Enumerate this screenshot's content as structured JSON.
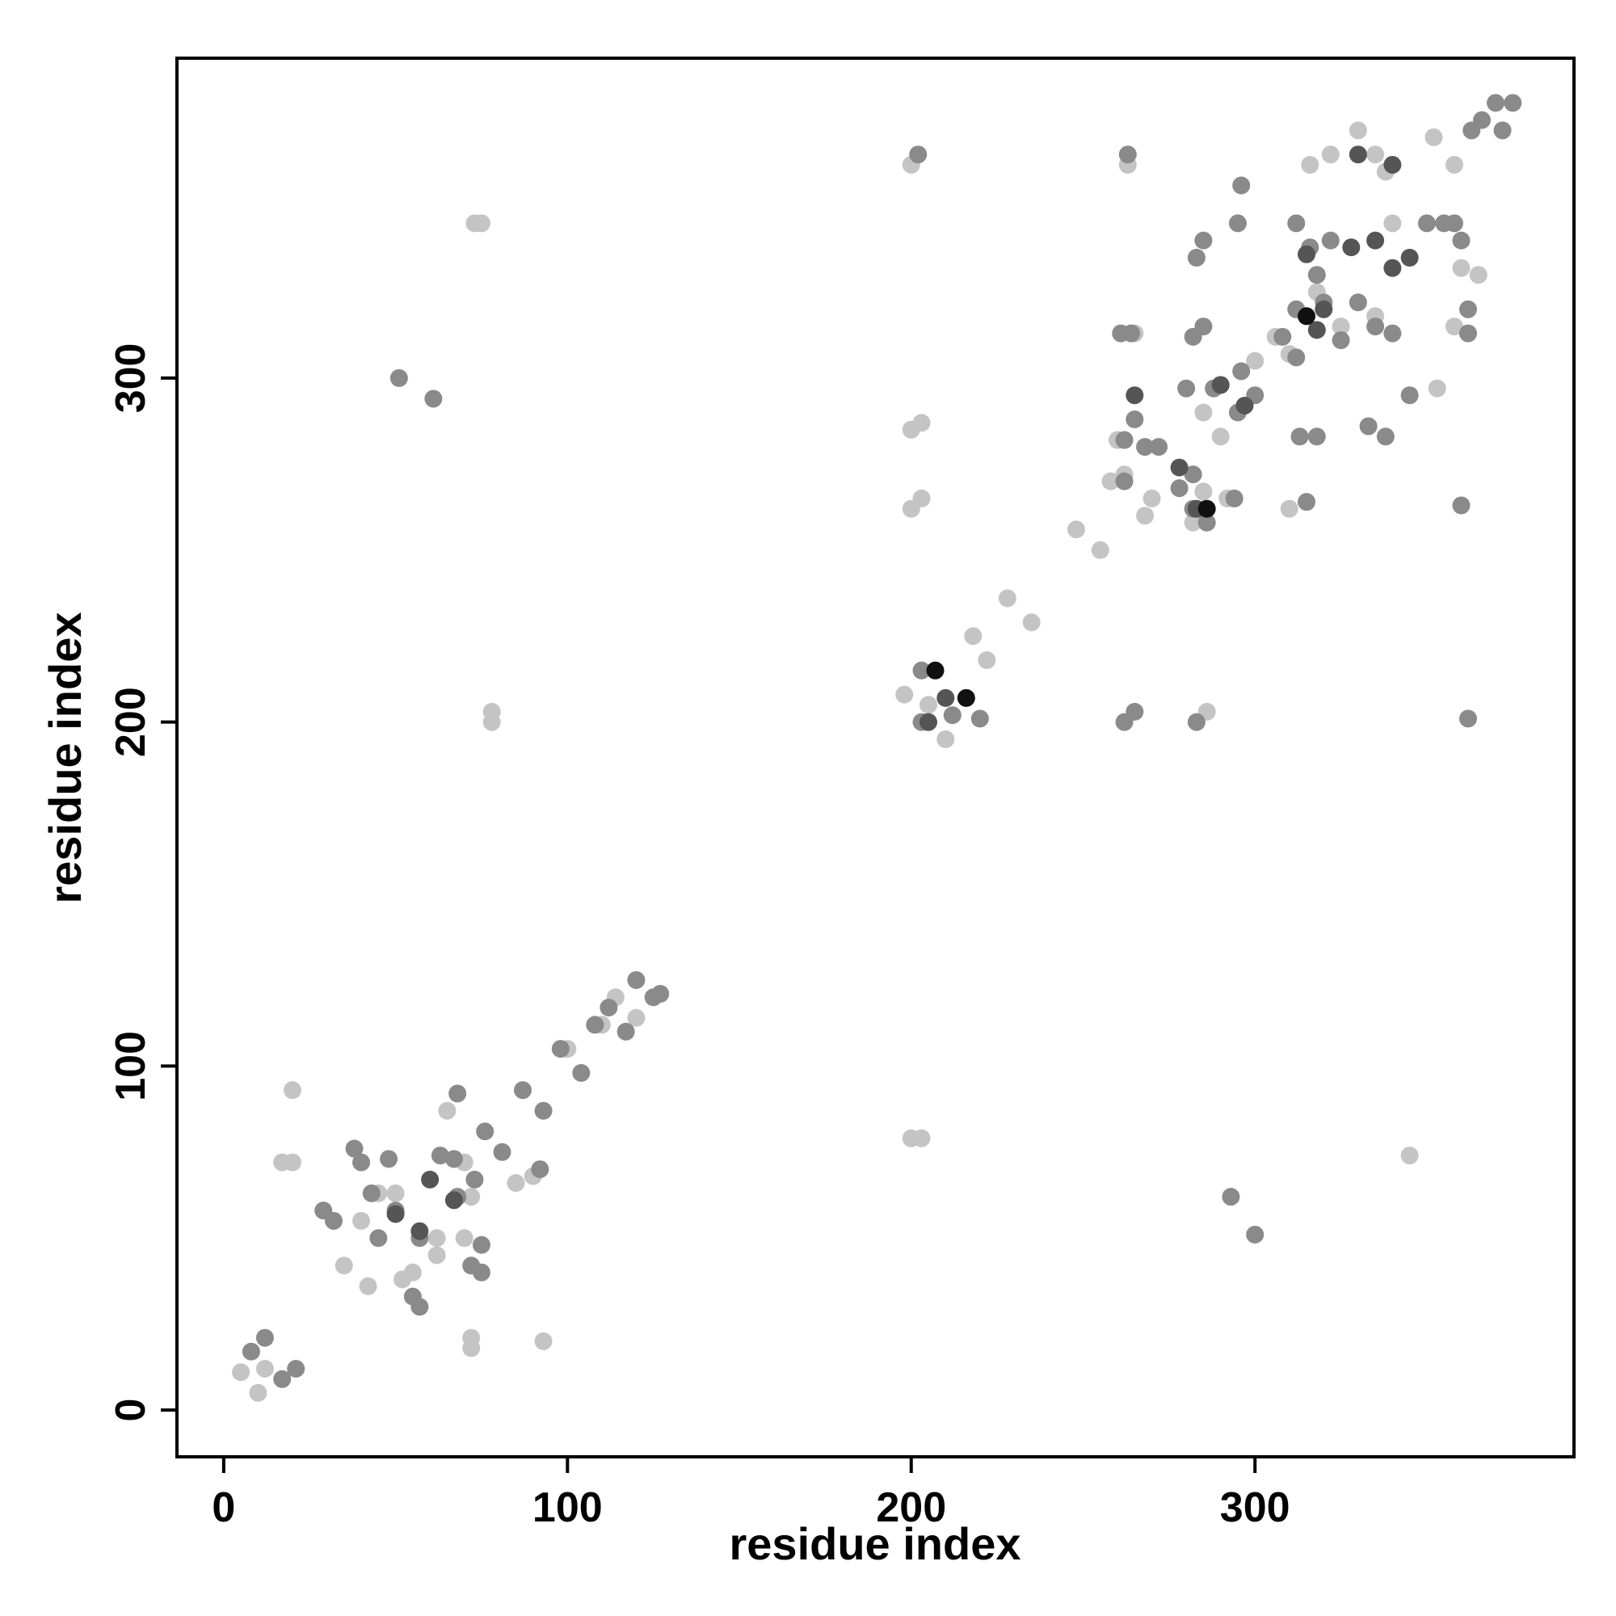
{
  "chart_data": {
    "type": "scatter",
    "x_label": "residue index",
    "y_label": "residue index",
    "xlim": [
      -13.6,
      392.8
    ],
    "ylim": [
      -13.6,
      393
    ],
    "xticks": [
      0,
      100,
      200,
      300
    ],
    "yticks": [
      0,
      100,
      200,
      300
    ],
    "grid": false,
    "series": [
      {
        "color": "#c4c4c4",
        "x": [
          5,
          10,
          12,
          20,
          17,
          20,
          72,
          72,
          93,
          73,
          75,
          78,
          78,
          50,
          45,
          40,
          35,
          42,
          55,
          52,
          62,
          62,
          65,
          70,
          72,
          70,
          85,
          90,
          100,
          110,
          114,
          120,
          200,
          203,
          200,
          203,
          200,
          203,
          200,
          198,
          205,
          210,
          218,
          222,
          228,
          235,
          248,
          255,
          258,
          262,
          260,
          268,
          270,
          282,
          285,
          290,
          285,
          292,
          300,
          306,
          310,
          316,
          322,
          330,
          335,
          338,
          345,
          352,
          358,
          360,
          358,
          365,
          353,
          335,
          325,
          340,
          318,
          310,
          263,
          265,
          286
        ],
        "y": [
          11,
          5,
          12,
          93,
          72,
          72,
          18,
          21,
          20,
          345,
          345,
          203,
          200,
          63,
          63,
          55,
          42,
          36,
          40,
          38,
          45,
          50,
          87,
          72,
          62,
          50,
          66,
          68,
          105,
          112,
          120,
          114,
          79,
          79,
          285,
          287,
          262,
          265,
          362,
          208,
          205,
          195,
          225,
          218,
          236,
          229,
          256,
          250,
          270,
          272,
          282,
          260,
          265,
          258,
          267,
          283,
          290,
          265,
          305,
          312,
          307,
          362,
          365,
          372,
          365,
          360,
          74,
          370,
          362,
          332,
          315,
          330,
          297,
          318,
          315,
          345,
          325,
          262,
          362,
          313,
          203
        ]
      },
      {
        "color": "#8a8a8a",
        "x": [
          8,
          12,
          17,
          21,
          29,
          32,
          38,
          40,
          43,
          45,
          48,
          50,
          55,
          57,
          57,
          63,
          67,
          68,
          68,
          72,
          75,
          73,
          75,
          76,
          81,
          87,
          93,
          92,
          98,
          104,
          108,
          112,
          117,
          120,
          125,
          127,
          51,
          61,
          202,
          203,
          203,
          212,
          220,
          262,
          265,
          263,
          261,
          264,
          262,
          265,
          268,
          272,
          278,
          282,
          282,
          286,
          283,
          285,
          290,
          296,
          300,
          295,
          308,
          312,
          316,
          312,
          318,
          320,
          322,
          325,
          330,
          335,
          340,
          333,
          338,
          345,
          350,
          355,
          360,
          358,
          362,
          362,
          363,
          366,
          370,
          372,
          375,
          285,
          282,
          283,
          293,
          300,
          313,
          318,
          312,
          315,
          360,
          362,
          295,
          294,
          296,
          262,
          280,
          288
        ],
        "y": [
          17,
          21,
          9,
          12,
          58,
          55,
          76,
          72,
          63,
          50,
          73,
          58,
          33,
          30,
          50,
          74,
          73,
          92,
          62,
          42,
          40,
          67,
          48,
          81,
          75,
          93,
          87,
          70,
          105,
          98,
          112,
          117,
          110,
          125,
          120,
          121,
          300,
          294,
          365,
          215,
          200,
          202,
          201,
          200,
          203,
          365,
          313,
          313,
          282,
          288,
          280,
          280,
          268,
          272,
          262,
          258,
          335,
          340,
          298,
          302,
          295,
          290,
          312,
          345,
          338,
          320,
          330,
          322,
          340,
          311,
          322,
          315,
          313,
          286,
          283,
          295,
          345,
          345,
          340,
          345,
          313,
          320,
          372,
          375,
          380,
          372,
          380,
          315,
          312,
          200,
          62,
          51,
          283,
          283,
          306,
          264,
          263,
          201,
          345,
          265,
          356,
          270,
          297,
          297
        ]
      },
      {
        "color": "#555555",
        "x": [
          50,
          57,
          60,
          67,
          205,
          210,
          290,
          297,
          278,
          283,
          265,
          320,
          328,
          335,
          340,
          345,
          330,
          340,
          315,
          318
        ],
        "y": [
          57,
          52,
          67,
          61,
          200,
          207,
          298,
          292,
          274,
          262,
          295,
          320,
          338,
          340,
          332,
          335,
          365,
          362,
          336,
          314
        ]
      },
      {
        "color": "#111111",
        "x": [
          207,
          216,
          286,
          315
        ],
        "y": [
          215,
          207,
          262,
          318
        ]
      }
    ]
  }
}
